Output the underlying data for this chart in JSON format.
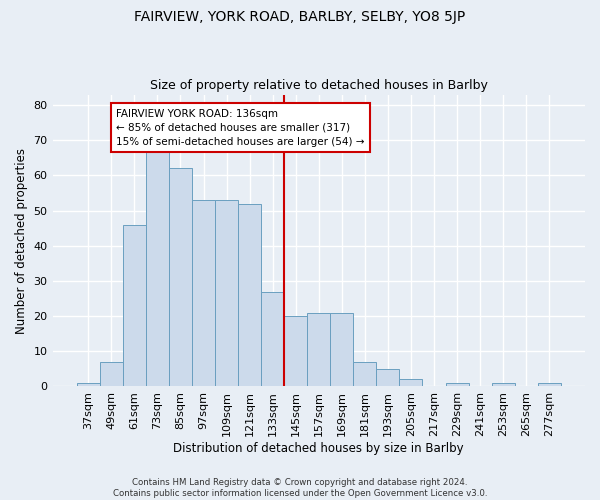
{
  "title": "FAIRVIEW, YORK ROAD, BARLBY, SELBY, YO8 5JP",
  "subtitle": "Size of property relative to detached houses in Barlby",
  "xlabel": "Distribution of detached houses by size in Barlby",
  "ylabel": "Number of detached properties",
  "bar_values": [
    1,
    7,
    46,
    67,
    62,
    53,
    53,
    52,
    27,
    20,
    21,
    21,
    7,
    5,
    2,
    0,
    1,
    0,
    1,
    0,
    1
  ],
  "categories": [
    "37sqm",
    "49sqm",
    "61sqm",
    "73sqm",
    "85sqm",
    "97sqm",
    "109sqm",
    "121sqm",
    "133sqm",
    "145sqm",
    "157sqm",
    "169sqm",
    "181sqm",
    "193sqm",
    "205sqm",
    "217sqm",
    "229sqm",
    "241sqm",
    "253sqm",
    "265sqm",
    "277sqm"
  ],
  "bar_color": "#ccdaeb",
  "bar_edge_color": "#6a9fc0",
  "vline_color": "#cc0000",
  "annotation_text": "FAIRVIEW YORK ROAD: 136sqm\n← 85% of detached houses are smaller (317)\n15% of semi-detached houses are larger (54) →",
  "annotation_box_color": "#ffffff",
  "annotation_box_edge": "#cc0000",
  "ylim": [
    0,
    83
  ],
  "yticks": [
    0,
    10,
    20,
    30,
    40,
    50,
    60,
    70,
    80
  ],
  "background_color": "#e8eef5",
  "grid_color": "#ffffff",
  "footer_line1": "Contains HM Land Registry data © Crown copyright and database right 2024.",
  "footer_line2": "Contains public sector information licensed under the Open Government Licence v3.0."
}
